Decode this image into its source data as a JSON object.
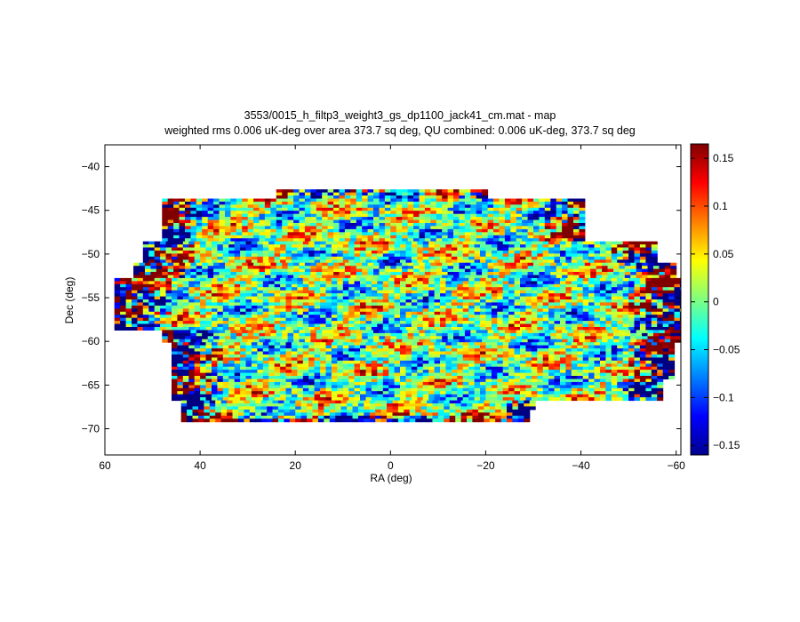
{
  "chart_data": {
    "type": "heatmap",
    "title": "3553/0015_h_filtp3_weight3_gs_dp1100_jack41_cm.mat - map",
    "subtitle": "weighted rms 0.006 uK-deg over area 373.7 sq deg, QU combined: 0.006 uK-deg, 373.7 sq deg",
    "xlabel": "RA (deg)",
    "ylabel": "Dec (deg)",
    "xlim": [
      60,
      -61
    ],
    "ylim": [
      -73,
      -37.5
    ],
    "x_ticks": [
      "60",
      "40",
      "20",
      "0",
      "−20",
      "−40",
      "−60"
    ],
    "x_tick_values": [
      60,
      40,
      20,
      0,
      -20,
      -40,
      -60
    ],
    "y_ticks": [
      "−40",
      "−45",
      "−50",
      "−55",
      "−60",
      "−65",
      "−70"
    ],
    "y_tick_values": [
      -40,
      -45,
      -50,
      -55,
      -60,
      -65,
      -70
    ],
    "colorbar": {
      "range": [
        -0.16,
        0.165
      ],
      "tick_labels": [
        "0.15",
        "0.1",
        "0.05",
        "0",
        "−0.05",
        "−0.1",
        "−0.15"
      ],
      "tick_values": [
        0.15,
        0.1,
        0.05,
        0,
        -0.05,
        -0.1,
        -0.15
      ],
      "colormap": "jet"
    },
    "colors": {
      "dark_blue": "#00008f",
      "cyan": "#00ffff",
      "yellow": "#ffff00",
      "dark_red": "#800000"
    }
  }
}
